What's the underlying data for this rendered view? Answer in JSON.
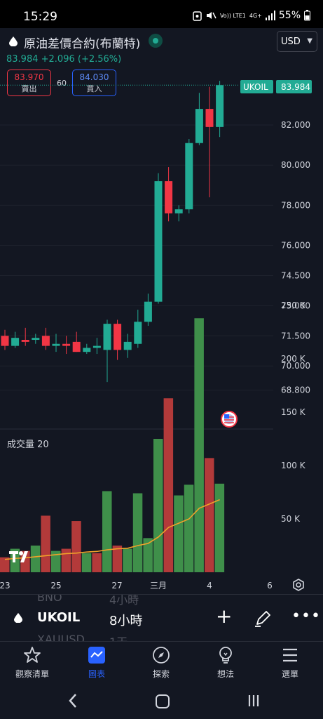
{
  "status": {
    "time": "15:29",
    "volte": "Vo)) LTE1",
    "network": "4G+",
    "battery": "55%"
  },
  "header": {
    "title": "原油差價合約(布蘭特)",
    "currency": "USD",
    "last_price": "83.984",
    "change": "+2.096 (+2.56%)",
    "sell_price": "83.970",
    "sell_label": "賣出",
    "spread": "60",
    "buy_price": "84.030",
    "buy_label": "買入"
  },
  "colors": {
    "up": "#22ab94",
    "down": "#f23645",
    "accent": "#2962ff",
    "volume_up": "#3f8f4a",
    "volume_down": "#b33a3a",
    "ma": "#f0a22a",
    "background": "#131722"
  },
  "chart_data": {
    "type": "candlestick",
    "symbol_tag": "UKOIL",
    "last_price_label": "83.984",
    "price_ticks": [
      "82.000",
      "80.000",
      "78.000",
      "76.000",
      "74.500",
      "73.000",
      "71.500",
      "70.000",
      "68.800"
    ],
    "volume_label": "成交量 20",
    "volume_ticks": [
      "250 K",
      "200 K",
      "150 K",
      "100 K",
      "50 K"
    ],
    "x_ticks": [
      "23",
      "25",
      "27",
      "三月",
      "4",
      "6"
    ],
    "candles": [
      {
        "o": 71.5,
        "h": 71.8,
        "l": 70.8,
        "c": 71.0
      },
      {
        "o": 71.0,
        "h": 71.7,
        "l": 70.9,
        "c": 71.4
      },
      {
        "o": 71.3,
        "h": 71.9,
        "l": 71.0,
        "c": 71.2
      },
      {
        "o": 71.3,
        "h": 71.6,
        "l": 71.1,
        "c": 71.4
      },
      {
        "o": 71.5,
        "h": 71.9,
        "l": 70.8,
        "c": 71.0
      },
      {
        "o": 71.0,
        "h": 71.6,
        "l": 70.7,
        "c": 71.1
      },
      {
        "o": 71.1,
        "h": 71.5,
        "l": 70.6,
        "c": 71.0
      },
      {
        "o": 71.2,
        "h": 71.7,
        "l": 70.7,
        "c": 70.7
      },
      {
        "o": 70.7,
        "h": 71.1,
        "l": 70.6,
        "c": 70.9
      },
      {
        "o": 70.9,
        "h": 71.4,
        "l": 70.6,
        "c": 71.0
      },
      {
        "o": 70.8,
        "h": 72.3,
        "l": 69.2,
        "c": 72.1
      },
      {
        "o": 72.1,
        "h": 72.3,
        "l": 70.3,
        "c": 70.8
      },
      {
        "o": 70.8,
        "h": 71.6,
        "l": 70.4,
        "c": 71.2
      },
      {
        "o": 71.1,
        "h": 72.8,
        "l": 70.9,
        "c": 72.2
      },
      {
        "o": 72.2,
        "h": 73.6,
        "l": 72.0,
        "c": 73.2
      },
      {
        "o": 73.2,
        "h": 79.6,
        "l": 73.1,
        "c": 79.2
      },
      {
        "o": 79.2,
        "h": 79.9,
        "l": 77.2,
        "c": 77.6
      },
      {
        "o": 77.6,
        "h": 78.0,
        "l": 77.2,
        "c": 77.8
      },
      {
        "o": 77.8,
        "h": 81.3,
        "l": 77.6,
        "c": 81.1
      },
      {
        "o": 81.1,
        "h": 83.6,
        "l": 81.0,
        "c": 82.8
      },
      {
        "o": 82.8,
        "h": 83.9,
        "l": 78.4,
        "c": 81.9
      },
      {
        "o": 81.9,
        "h": 84.2,
        "l": 81.4,
        "c": 83.984
      }
    ],
    "volumes": [
      {
        "v": 14000,
        "up": false
      },
      {
        "v": 22000,
        "up": true
      },
      {
        "v": 20000,
        "up": false
      },
      {
        "v": 25000,
        "up": true
      },
      {
        "v": 53000,
        "up": false
      },
      {
        "v": 20000,
        "up": true
      },
      {
        "v": 22000,
        "up": false
      },
      {
        "v": 48000,
        "up": false
      },
      {
        "v": 18000,
        "up": true
      },
      {
        "v": 18000,
        "up": false
      },
      {
        "v": 76000,
        "up": true
      },
      {
        "v": 25000,
        "up": false
      },
      {
        "v": 22000,
        "up": true
      },
      {
        "v": 74000,
        "up": true
      },
      {
        "v": 32000,
        "up": true
      },
      {
        "v": 125000,
        "up": true
      },
      {
        "v": 163000,
        "up": false
      },
      {
        "v": 72000,
        "up": true
      },
      {
        "v": 82000,
        "up": true
      },
      {
        "v": 238000,
        "up": true
      },
      {
        "v": 107000,
        "up": false
      },
      {
        "v": 83000,
        "up": true
      }
    ],
    "ma20": [
      12000,
      13000,
      13500,
      14500,
      15500,
      16500,
      17500,
      18000,
      19000,
      19500,
      21000,
      22000,
      22500,
      25000,
      27000,
      33000,
      42000,
      46000,
      50000,
      60000,
      64000,
      68000
    ]
  },
  "toolbar": {
    "ghost_top": "BNO",
    "ghost_top_right": "4小時",
    "ghost_bottom": "XAUUSD",
    "ghost_bottom_right": "1天",
    "symbol": "UKOIL",
    "interval": "8小時",
    "plus": "+",
    "more": "•••"
  },
  "nav": [
    {
      "label": "觀察清單",
      "icon": "star-icon"
    },
    {
      "label": "圖表",
      "icon": "chart-icon"
    },
    {
      "label": "探索",
      "icon": "compass-icon"
    },
    {
      "label": "想法",
      "icon": "lightbulb-icon"
    },
    {
      "label": "選單",
      "icon": "menu-icon"
    }
  ]
}
